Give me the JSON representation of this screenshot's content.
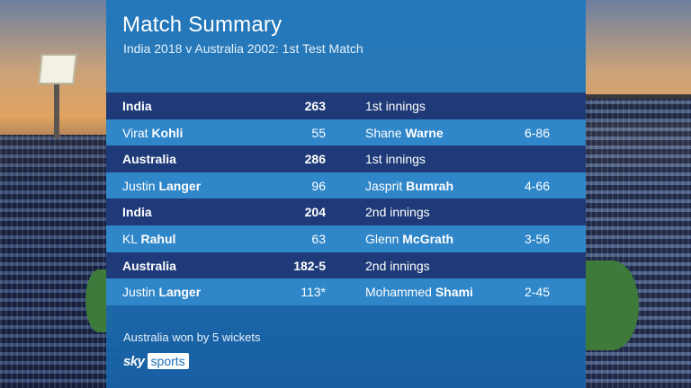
{
  "header": {
    "title": "Match Summary",
    "subtitle": "India 2018 v Australia 2002:  1st Test Match"
  },
  "rows": [
    {
      "type": "team",
      "name": "India",
      "score": "263",
      "desc": "1st innings",
      "fig": ""
    },
    {
      "type": "player",
      "first": "Virat",
      "last": "Kohli",
      "score": "55",
      "bowler_first": "Shane",
      "bowler_last": "Warne",
      "fig": "6-86"
    },
    {
      "type": "team",
      "name": "Australia",
      "score": "286",
      "desc": "1st innings",
      "fig": ""
    },
    {
      "type": "player",
      "first": "Justin",
      "last": "Langer",
      "score": "96",
      "bowler_first": "Jasprit",
      "bowler_last": "Bumrah",
      "fig": "4-66"
    },
    {
      "type": "team",
      "name": "India",
      "score": "204",
      "desc": "2nd innings",
      "fig": ""
    },
    {
      "type": "player",
      "first": "KL",
      "last": "Rahul",
      "score": "63",
      "bowler_first": "Glenn",
      "bowler_last": "McGrath",
      "fig": "3-56"
    },
    {
      "type": "team",
      "name": "Australia",
      "score": "182-5",
      "desc": "2nd innings",
      "fig": ""
    },
    {
      "type": "player",
      "first": "Justin",
      "last": "Langer",
      "score": "113*",
      "bowler_first": "Mohammed",
      "bowler_last": "Shami",
      "fig": "2-45"
    }
  ],
  "footer": {
    "result": "Australia won by 5 wickets",
    "logo_sky": "sky",
    "logo_sports": "sports"
  },
  "colors": {
    "panel": "#1e78be",
    "team_row": "#1e3a78",
    "player_row": "#2f86c9"
  }
}
